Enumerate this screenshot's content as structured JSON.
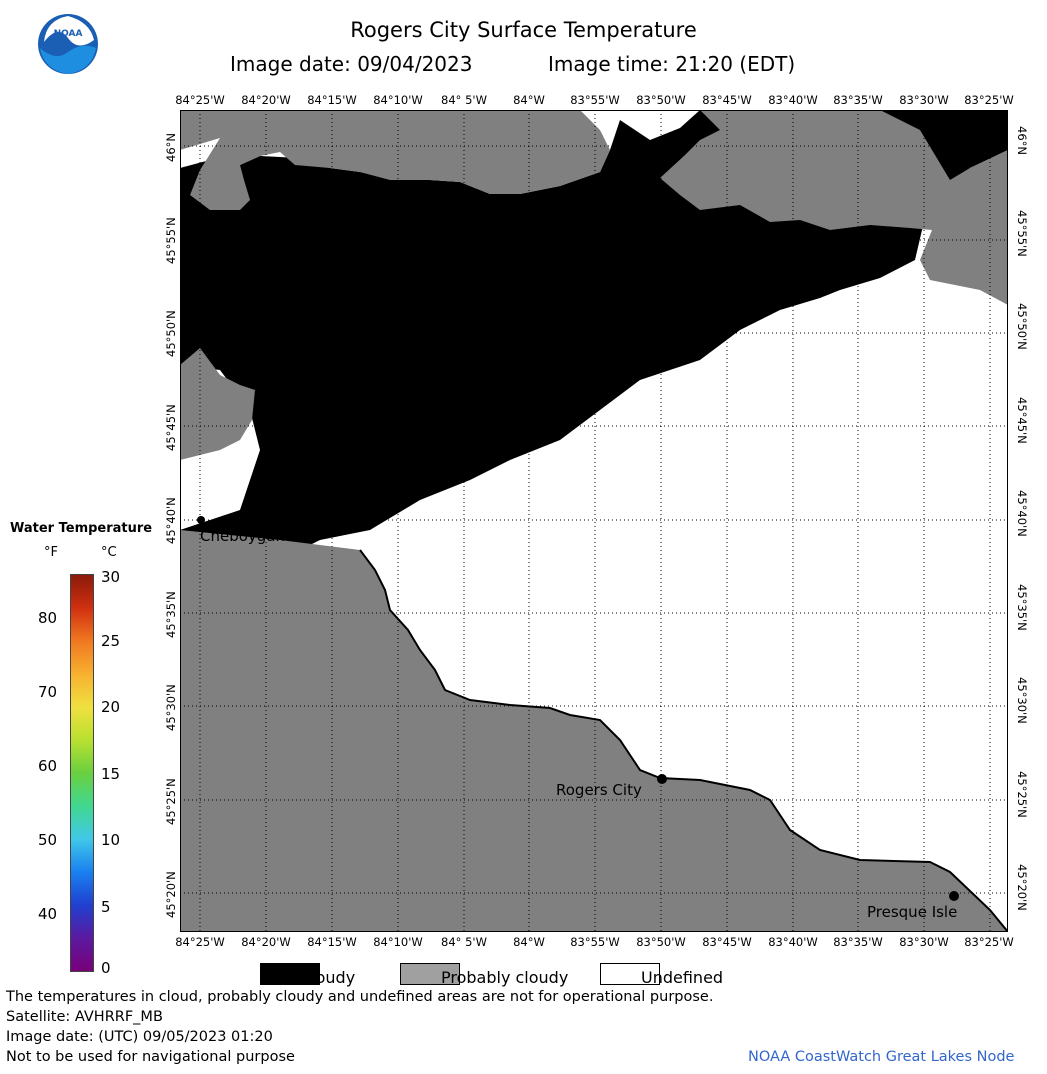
{
  "header": {
    "title": "Rogers City Surface Temperature",
    "image_date_label": "Image date: 09/04/2023",
    "image_time_label": "Image time: 21:20 (EDT)"
  },
  "map": {
    "lon_labels": [
      "84°25'W",
      "84°20'W",
      "84°15'W",
      "84°10'W",
      "84° 5'W",
      "84°W",
      "83°55'W",
      "83°50'W",
      "83°45'W",
      "83°40'W",
      "83°35'W",
      "83°30'W",
      "83°25'W"
    ],
    "lat_labels": [
      "46°N",
      "45°55'N",
      "45°50'N",
      "45°45'N",
      "45°40'N",
      "45°35'N",
      "45°30'N",
      "45°25'N",
      "45°20'N"
    ],
    "places": {
      "cheboygan": "Cheboygan",
      "rogers_city": "Rogers City",
      "presque_isle": "Presque Isle"
    },
    "colors": {
      "cloudy": "#000000",
      "probably_cloudy": "#808080",
      "undefined": "#ffffff",
      "grid": "#000000"
    }
  },
  "temperature_scale": {
    "title": "Water Temperature",
    "unit_f": "°F",
    "unit_c": "°C",
    "f_ticks": [
      "80",
      "70",
      "60",
      "50",
      "40"
    ],
    "c_ticks": [
      "30",
      "25",
      "20",
      "15",
      "10",
      "5",
      "0"
    ]
  },
  "key": {
    "cloudy": "Cloudy",
    "probably_cloudy": "Probably cloudy",
    "undefined": "Undefined"
  },
  "footer": {
    "disclaimer": "The temperatures in cloud, probably cloudy and undefined areas are not for operational purpose.",
    "satellite": "Satellite: AVHRRF_MB",
    "utc_date": "Image date: (UTC) 09/05/2023  01:20",
    "nav_warning": "Not to be used for navigational purpose",
    "credit": "NOAA CoastWatch Great Lakes Node"
  }
}
